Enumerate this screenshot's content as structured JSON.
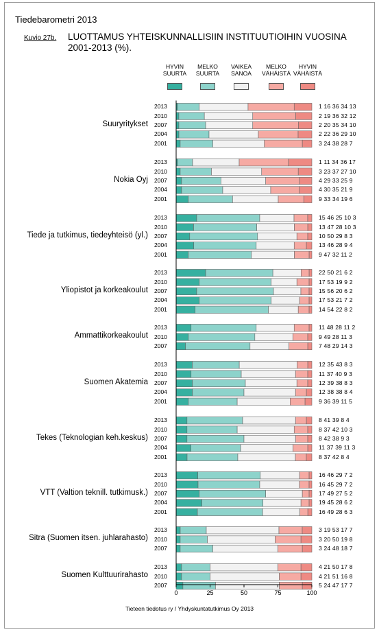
{
  "header": {
    "title": "Tiedebarometri 2013",
    "figure_label": "Kuvio 27b.",
    "heading_line1": "LUOTTAMUS YHTEISKUNNALLISIIN INSTITUUTIOIHIN VUOSINA",
    "heading_line2": "2001-2013 (%)."
  },
  "footer": {
    "source": "Tieteen tiedotus ry / Yhdyskuntatutkimus Oy 2013"
  },
  "colors": {
    "hyvin_suurta": "#36b0a0",
    "melko_suurta": "#8dd3cb",
    "vaikea_sanoa": "#f2f2f2",
    "melko_vahaista": "#f6aaa3",
    "hyvin_vahaista": "#ee8a83"
  },
  "chart_data": {
    "type": "bar",
    "orientation": "horizontal-stacked",
    "xlim": [
      0,
      100
    ],
    "x_ticks": [
      "0",
      "25",
      "50",
      "75",
      "100"
    ],
    "legend": [
      {
        "line1": "HYVIN",
        "line2": "SUURTA",
        "color": "#36b0a0"
      },
      {
        "line1": "MELKO",
        "line2": "SUURTA",
        "color": "#8dd3cb"
      },
      {
        "line1": "VAIKEA",
        "line2": "SANOA",
        "color": "#f2f2f2"
      },
      {
        "line1": "MELKO",
        "line2": "VÄHÄISTÄ",
        "color": "#f6aaa3"
      },
      {
        "line1": "HYVIN",
        "line2": "VÄHÄISTÄ",
        "color": "#ee8a83"
      }
    ],
    "groups": [
      {
        "name": "Suuryritykset",
        "rows": [
          {
            "year": "2013",
            "values": [
              1,
              16,
              36,
              34,
              13
            ]
          },
          {
            "year": "2010",
            "values": [
              2,
              19,
              36,
              32,
              12
            ]
          },
          {
            "year": "2007",
            "values": [
              2,
              20,
              35,
              34,
              10
            ]
          },
          {
            "year": "2004",
            "values": [
              2,
              22,
              36,
              29,
              10
            ]
          },
          {
            "year": "2001",
            "values": [
              3,
              24,
              38,
              28,
              7
            ]
          }
        ]
      },
      {
        "name": "Nokia Oyj",
        "rows": [
          {
            "year": "2013",
            "values": [
              1,
              11,
              34,
              36,
              17
            ]
          },
          {
            "year": "2010",
            "values": [
              3,
              23,
              37,
              27,
              10
            ]
          },
          {
            "year": "2007",
            "values": [
              4,
              29,
              33,
              25,
              9
            ]
          },
          {
            "year": "2004",
            "values": [
              4,
              30,
              35,
              21,
              9
            ]
          },
          {
            "year": "2001",
            "values": [
              9,
              33,
              34,
              19,
              6
            ]
          }
        ]
      },
      {
        "name": "Tiede ja tutkimus, tiedeyhteisö (yl.)",
        "rows": [
          {
            "year": "2013",
            "values": [
              15,
              46,
              25,
              10,
              3
            ]
          },
          {
            "year": "2010",
            "values": [
              13,
              47,
              28,
              10,
              3
            ]
          },
          {
            "year": "2007",
            "values": [
              10,
              50,
              29,
              8,
              3
            ]
          },
          {
            "year": "2004",
            "values": [
              13,
              46,
              28,
              9,
              4
            ]
          },
          {
            "year": "2001",
            "values": [
              9,
              47,
              32,
              11,
              2
            ]
          }
        ]
      },
      {
        "name": "Yliopistot ja korkeakoulut",
        "rows": [
          {
            "year": "2013",
            "values": [
              22,
              50,
              21,
              6,
              2
            ]
          },
          {
            "year": "2010",
            "values": [
              17,
              53,
              19,
              9,
              2
            ]
          },
          {
            "year": "2007",
            "values": [
              15,
              56,
              20,
              6,
              2
            ]
          },
          {
            "year": "2004",
            "values": [
              17,
              53,
              21,
              7,
              2
            ]
          },
          {
            "year": "2001",
            "values": [
              14,
              54,
              22,
              8,
              2
            ]
          }
        ]
      },
      {
        "name": "Ammattikorkeakoulut",
        "rows": [
          {
            "year": "2013",
            "values": [
              11,
              48,
              28,
              11,
              2
            ]
          },
          {
            "year": "2010",
            "values": [
              9,
              49,
              28,
              11,
              3
            ]
          },
          {
            "year": "2007",
            "values": [
              7,
              48,
              29,
              14,
              3
            ]
          }
        ]
      },
      {
        "name": "Suomen Akatemia",
        "rows": [
          {
            "year": "2013",
            "values": [
              12,
              35,
              43,
              8,
              3
            ]
          },
          {
            "year": "2010",
            "values": [
              11,
              37,
              40,
              9,
              3
            ]
          },
          {
            "year": "2007",
            "values": [
              12,
              39,
              38,
              8,
              3
            ]
          },
          {
            "year": "2004",
            "values": [
              12,
              38,
              38,
              8,
              4
            ]
          },
          {
            "year": "2001",
            "values": [
              9,
              36,
              39,
              11,
              5
            ]
          }
        ]
      },
      {
        "name": "Tekes (Teknologian keh.keskus)",
        "rows": [
          {
            "year": "2013",
            "values": [
              8,
              41,
              39,
              8,
              4
            ]
          },
          {
            "year": "2010",
            "values": [
              8,
              37,
              42,
              10,
              3
            ]
          },
          {
            "year": "2007",
            "values": [
              8,
              42,
              38,
              9,
              3
            ]
          },
          {
            "year": "2004",
            "values": [
              11,
              37,
              39,
              11,
              3
            ]
          },
          {
            "year": "2001",
            "values": [
              8,
              37,
              42,
              8,
              4
            ]
          }
        ]
      },
      {
        "name": "VTT (Valtion teknill. tutkimusk.)",
        "rows": [
          {
            "year": "2013",
            "values": [
              16,
              46,
              29,
              7,
              2
            ]
          },
          {
            "year": "2010",
            "values": [
              16,
              45,
              29,
              7,
              2
            ]
          },
          {
            "year": "2007",
            "values": [
              17,
              49,
              27,
              5,
              2
            ]
          },
          {
            "year": "2004",
            "values": [
              19,
              45,
              28,
              6,
              2
            ]
          },
          {
            "year": "2001",
            "values": [
              16,
              49,
              28,
              6,
              3
            ]
          }
        ]
      },
      {
        "name": "Sitra (Suomen itsen. juhlarahasto)",
        "rows": [
          {
            "year": "2013",
            "values": [
              3,
              19,
              53,
              17,
              7
            ]
          },
          {
            "year": "2010",
            "values": [
              3,
              20,
              50,
              19,
              8
            ]
          },
          {
            "year": "2007",
            "values": [
              3,
              24,
              48,
              18,
              7
            ]
          }
        ]
      },
      {
        "name": "Suomen Kulttuurirahasto",
        "rows": [
          {
            "year": "2013",
            "values": [
              4,
              21,
              50,
              17,
              8
            ]
          },
          {
            "year": "2010",
            "values": [
              4,
              21,
              51,
              16,
              8
            ]
          },
          {
            "year": "2007",
            "values": [
              5,
              24,
              47,
              17,
              7
            ]
          }
        ]
      }
    ]
  }
}
